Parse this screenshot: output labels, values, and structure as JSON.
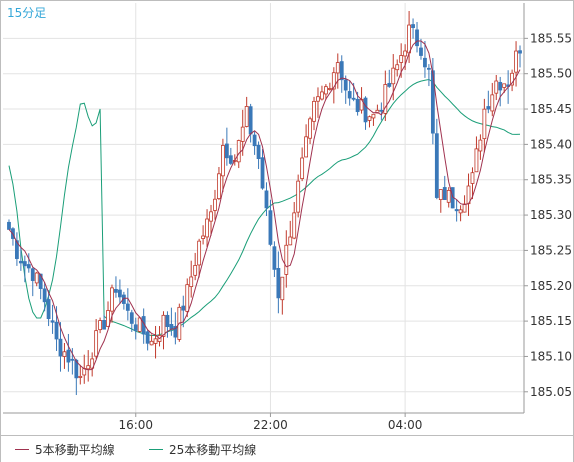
{
  "timeframe_label": "15分足",
  "legend": {
    "ma5_label": "5本移動平均線",
    "ma25_label": "25本移動平均線"
  },
  "colors": {
    "up_candle": "#c0392b",
    "down_candle": "#3a78b8",
    "ma5": "#a0324f",
    "ma25": "#1a9e78",
    "grid": "#e3e3e3",
    "axis": "#9a9a9a",
    "text": "#333333",
    "timeframe": "#35a7d8"
  },
  "chart_data": {
    "type": "candlestick",
    "title": "",
    "ylim": [
      185.02,
      185.6
    ],
    "y_ticks": [
      185.05,
      185.1,
      185.15,
      185.2,
      185.25,
      185.3,
      185.35,
      185.4,
      185.45,
      185.5,
      185.55
    ],
    "y_tick_labels": [
      "185.05",
      "185.10",
      "185.15",
      "185.20",
      "185.25",
      "185.30",
      "185.35",
      "185.40",
      "185.45",
      "185.50",
      "185.55"
    ],
    "x_ticks": [
      "16:00",
      "22:00",
      "04:00"
    ],
    "x_tick_index": [
      32,
      66,
      100
    ],
    "grid": true,
    "num_candles": 130,
    "ma5_label": "5本移動平均線",
    "ma25_label": "25本移動平均線",
    "ma25_start": [
      185.37,
      185.33,
      185.25,
      185.19,
      185.16,
      185.15,
      185.17,
      185.2,
      185.25,
      185.32,
      185.38,
      185.42,
      185.47,
      185.44,
      185.42,
      185.45
    ],
    "ohlc_anchors": [
      [
        0,
        185.28
      ],
      [
        2,
        185.25
      ],
      [
        4,
        185.23
      ],
      [
        6,
        185.22
      ],
      [
        9,
        185.18
      ],
      [
        12,
        185.12
      ],
      [
        15,
        185.1
      ],
      [
        18,
        185.07
      ],
      [
        21,
        185.11
      ],
      [
        24,
        185.15
      ],
      [
        27,
        185.2
      ],
      [
        30,
        185.16
      ],
      [
        33,
        185.14
      ],
      [
        36,
        185.12
      ],
      [
        39,
        185.15
      ],
      [
        42,
        185.14
      ],
      [
        45,
        185.19
      ],
      [
        48,
        185.26
      ],
      [
        51,
        185.3
      ],
      [
        54,
        185.4
      ],
      [
        57,
        185.38
      ],
      [
        60,
        185.44
      ],
      [
        63,
        185.38
      ],
      [
        66,
        185.26
      ],
      [
        68,
        185.19
      ],
      [
        71,
        185.28
      ],
      [
        74,
        185.37
      ],
      [
        77,
        185.45
      ],
      [
        80,
        185.48
      ],
      [
        83,
        185.52
      ],
      [
        86,
        185.46
      ],
      [
        89,
        185.45
      ],
      [
        92,
        185.44
      ],
      [
        95,
        185.47
      ],
      [
        98,
        185.51
      ],
      [
        101,
        185.56
      ],
      [
        104,
        185.54
      ],
      [
        106,
        185.5
      ],
      [
        108,
        185.32
      ],
      [
        110,
        185.33
      ],
      [
        112,
        185.32
      ],
      [
        114,
        185.32
      ],
      [
        117,
        185.35
      ],
      [
        120,
        185.45
      ],
      [
        123,
        185.49
      ],
      [
        126,
        185.49
      ],
      [
        129,
        185.54
      ]
    ]
  }
}
